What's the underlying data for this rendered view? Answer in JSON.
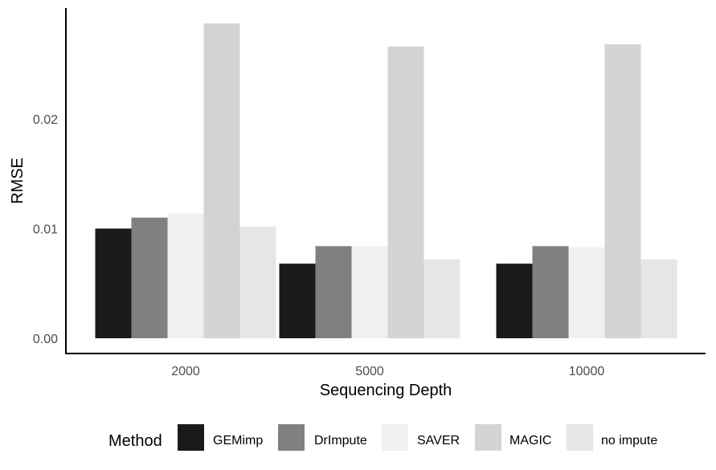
{
  "chart_data": {
    "type": "bar",
    "categories": [
      "2000",
      "5000",
      "10000"
    ],
    "series": [
      {
        "name": "GEMimp",
        "values": [
          0.01,
          0.0068,
          0.0068
        ],
        "color": "#1a1a1a"
      },
      {
        "name": "DrImpute",
        "values": [
          0.011,
          0.0084,
          0.0084
        ],
        "color": "#808080"
      },
      {
        "name": "SAVER",
        "values": [
          0.0114,
          0.0084,
          0.0083
        ],
        "color": "#f0f0f0"
      },
      {
        "name": "MAGIC",
        "values": [
          0.0287,
          0.0266,
          0.0268
        ],
        "color": "#d3d3d3"
      },
      {
        "name": "no impute",
        "values": [
          0.0102,
          0.0072,
          0.0072
        ],
        "color": "#e6e6e6"
      }
    ],
    "xlabel": "Sequencing Depth",
    "ylabel": "RMSE",
    "ylim": [
      0,
      0.03
    ],
    "yticks": [
      "0.00",
      "0.01",
      "0.02"
    ],
    "ytick_values": [
      0,
      0.01,
      0.02
    ],
    "grid": false,
    "legend": {
      "title": "Method",
      "position": "bottom"
    }
  }
}
